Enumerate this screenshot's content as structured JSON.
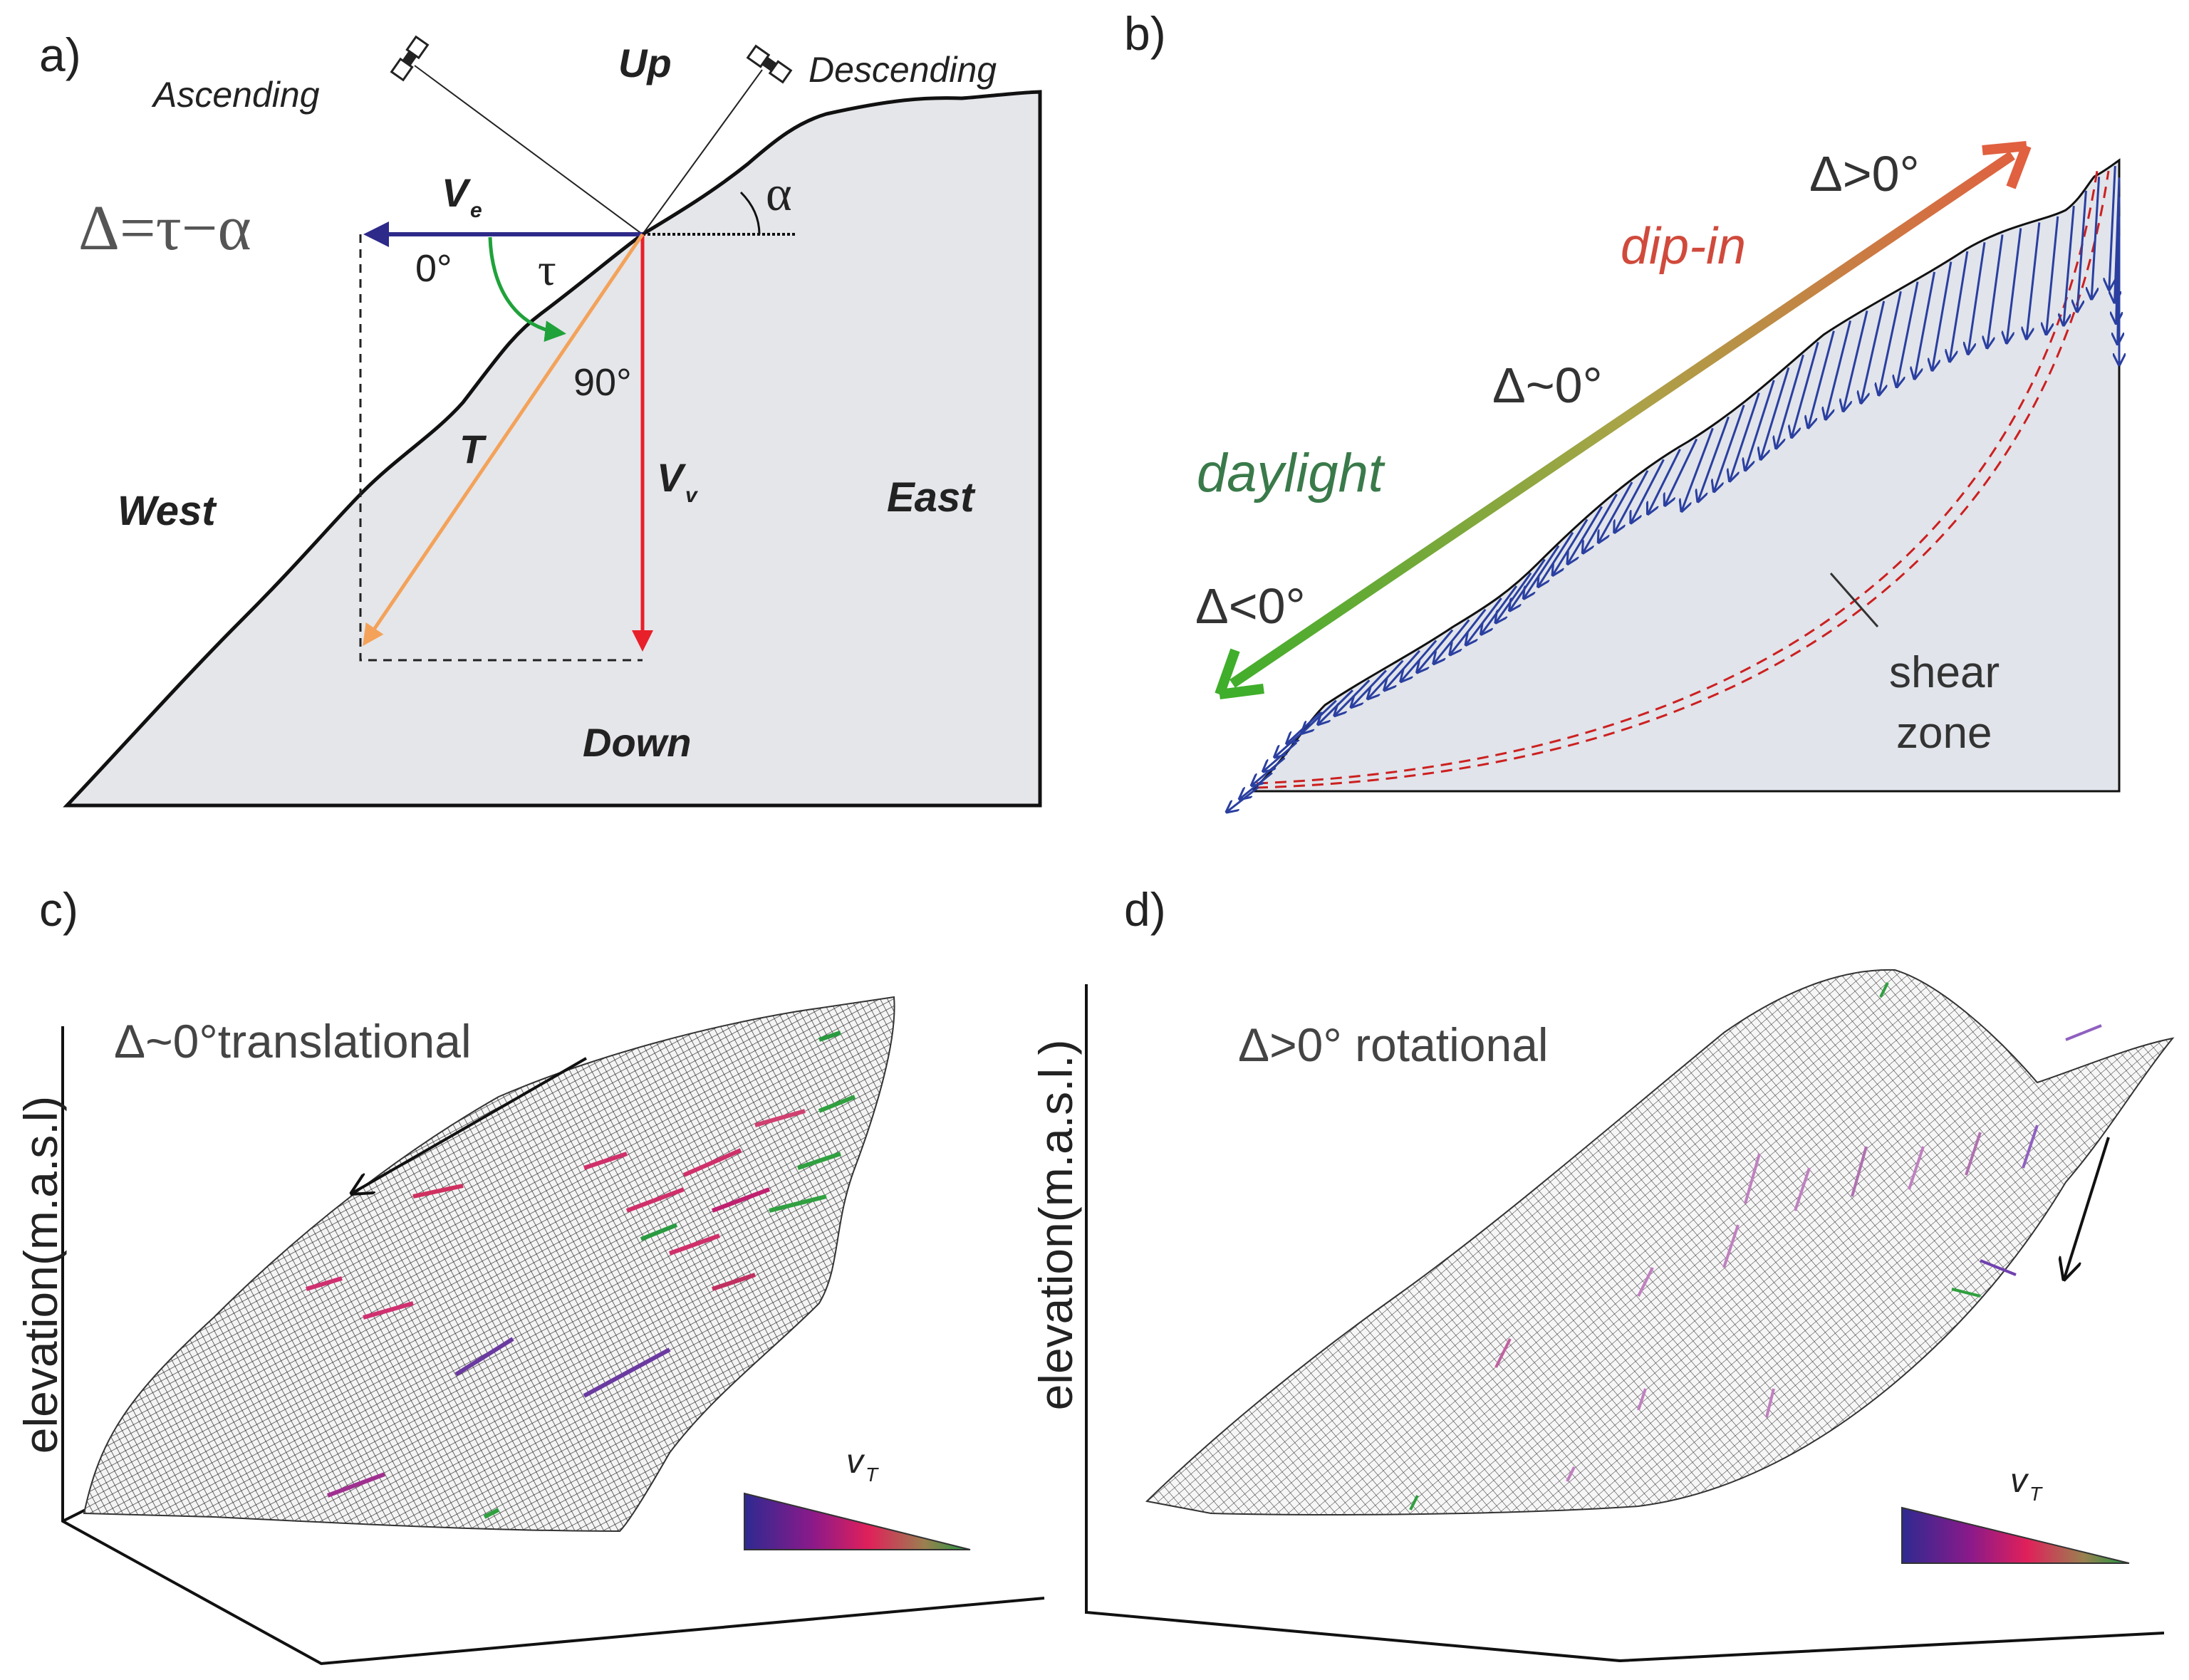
{
  "panel_a": {
    "label": "a)",
    "ascending": "Ascending",
    "descending": "Descending",
    "up": "Up",
    "down": "Down",
    "west": "West",
    "east": "East",
    "equation": "Δ=τ−α",
    "ve": "V",
    "ve_sub": "e",
    "vv": "V",
    "vv_sub": "v",
    "t": "T",
    "tau": "τ",
    "alpha": "α",
    "angle_0": "0°",
    "angle_90": "90°",
    "colors": {
      "ve": "#2e2a8a",
      "vv": "#e8202a",
      "t": "#f4a25a",
      "tau_arc": "#1fa23a",
      "terrain": "#e4e6ea"
    }
  },
  "panel_b": {
    "label": "b)",
    "delta_pos": "Δ>0°",
    "dip_in": "dip-in",
    "delta_zero": "Δ~0°",
    "daylight": "daylight",
    "delta_neg": "Δ<0°",
    "shear": "shear",
    "zone": "zone",
    "colors": {
      "arrow_start": "#3fae2a",
      "arrow_end": "#e06040",
      "vectors": "#2a3fa0",
      "shear_zone": "#cc2020"
    }
  },
  "panel_c": {
    "label": "c)",
    "title": "Δ~0°translational",
    "ylabel": "elevation(m.a.s.l)",
    "legend": "v",
    "legend_sub": "T"
  },
  "panel_d": {
    "label": "d)",
    "title": "Δ>0° rotational",
    "ylabel": "elevation(m.a.s.l.)",
    "legend": "v",
    "legend_sub": "T"
  }
}
